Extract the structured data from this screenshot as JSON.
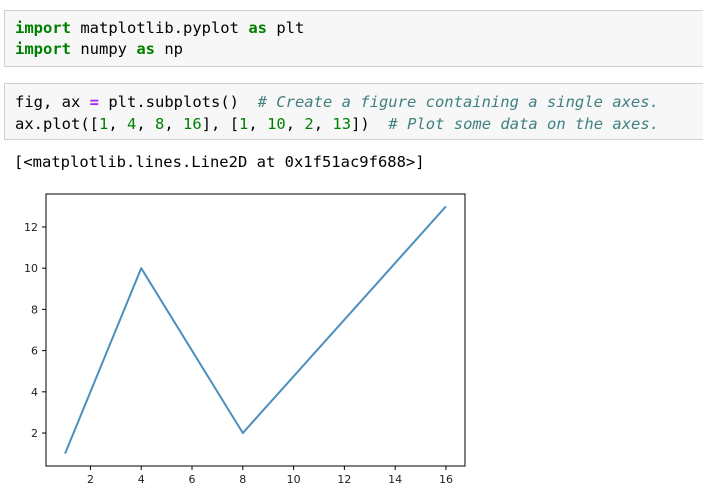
{
  "cells": [
    {
      "lines": [
        [
          [
            "import",
            "kw"
          ],
          [
            " matplotlib.pyplot ",
            "plain"
          ],
          [
            "as",
            "kw"
          ],
          [
            " plt",
            "plain"
          ]
        ],
        [
          [
            "import",
            "kw"
          ],
          [
            " numpy ",
            "plain"
          ],
          [
            "as",
            "kw"
          ],
          [
            " np",
            "plain"
          ]
        ]
      ]
    },
    {
      "lines": [
        [
          [
            "fig, ax ",
            "plain"
          ],
          [
            "=",
            "op"
          ],
          [
            " plt.subplots()  ",
            "plain"
          ],
          [
            "# Create a figure containing a single axes.",
            "com"
          ]
        ],
        [
          [
            "ax.plot([",
            "plain"
          ],
          [
            "1",
            "num"
          ],
          [
            ", ",
            "plain"
          ],
          [
            "4",
            "num"
          ],
          [
            ", ",
            "plain"
          ],
          [
            "8",
            "num"
          ],
          [
            ", ",
            "plain"
          ],
          [
            "16",
            "num"
          ],
          [
            "], [",
            "plain"
          ],
          [
            "1",
            "num"
          ],
          [
            ", ",
            "plain"
          ],
          [
            "10",
            "num"
          ],
          [
            ", ",
            "plain"
          ],
          [
            "2",
            "num"
          ],
          [
            ", ",
            "plain"
          ],
          [
            "13",
            "num"
          ],
          [
            "])  ",
            "plain"
          ],
          [
            "# Plot some data on the axes.",
            "com"
          ]
        ]
      ]
    }
  ],
  "output": {
    "text": "[<matplotlib.lines.Line2D at 0x1f51ac9f688>]"
  },
  "colors": {
    "keyword": "#008000",
    "operator": "#aa22ff",
    "number": "#008000",
    "comment": "#408080",
    "cell_background": "#f7f7f7",
    "line": "#4c8fbd"
  },
  "chart_data": {
    "type": "line",
    "x": [
      1,
      4,
      8,
      16
    ],
    "series": [
      {
        "values": [
          1,
          10,
          2,
          13
        ]
      }
    ],
    "xlim": [
      0.25,
      16.75
    ],
    "ylim": [
      0.4,
      13.6
    ],
    "xticks": [
      2,
      4,
      6,
      8,
      10,
      12,
      14,
      16
    ],
    "yticks": [
      2,
      4,
      6,
      8,
      10,
      12
    ],
    "grid": false
  }
}
